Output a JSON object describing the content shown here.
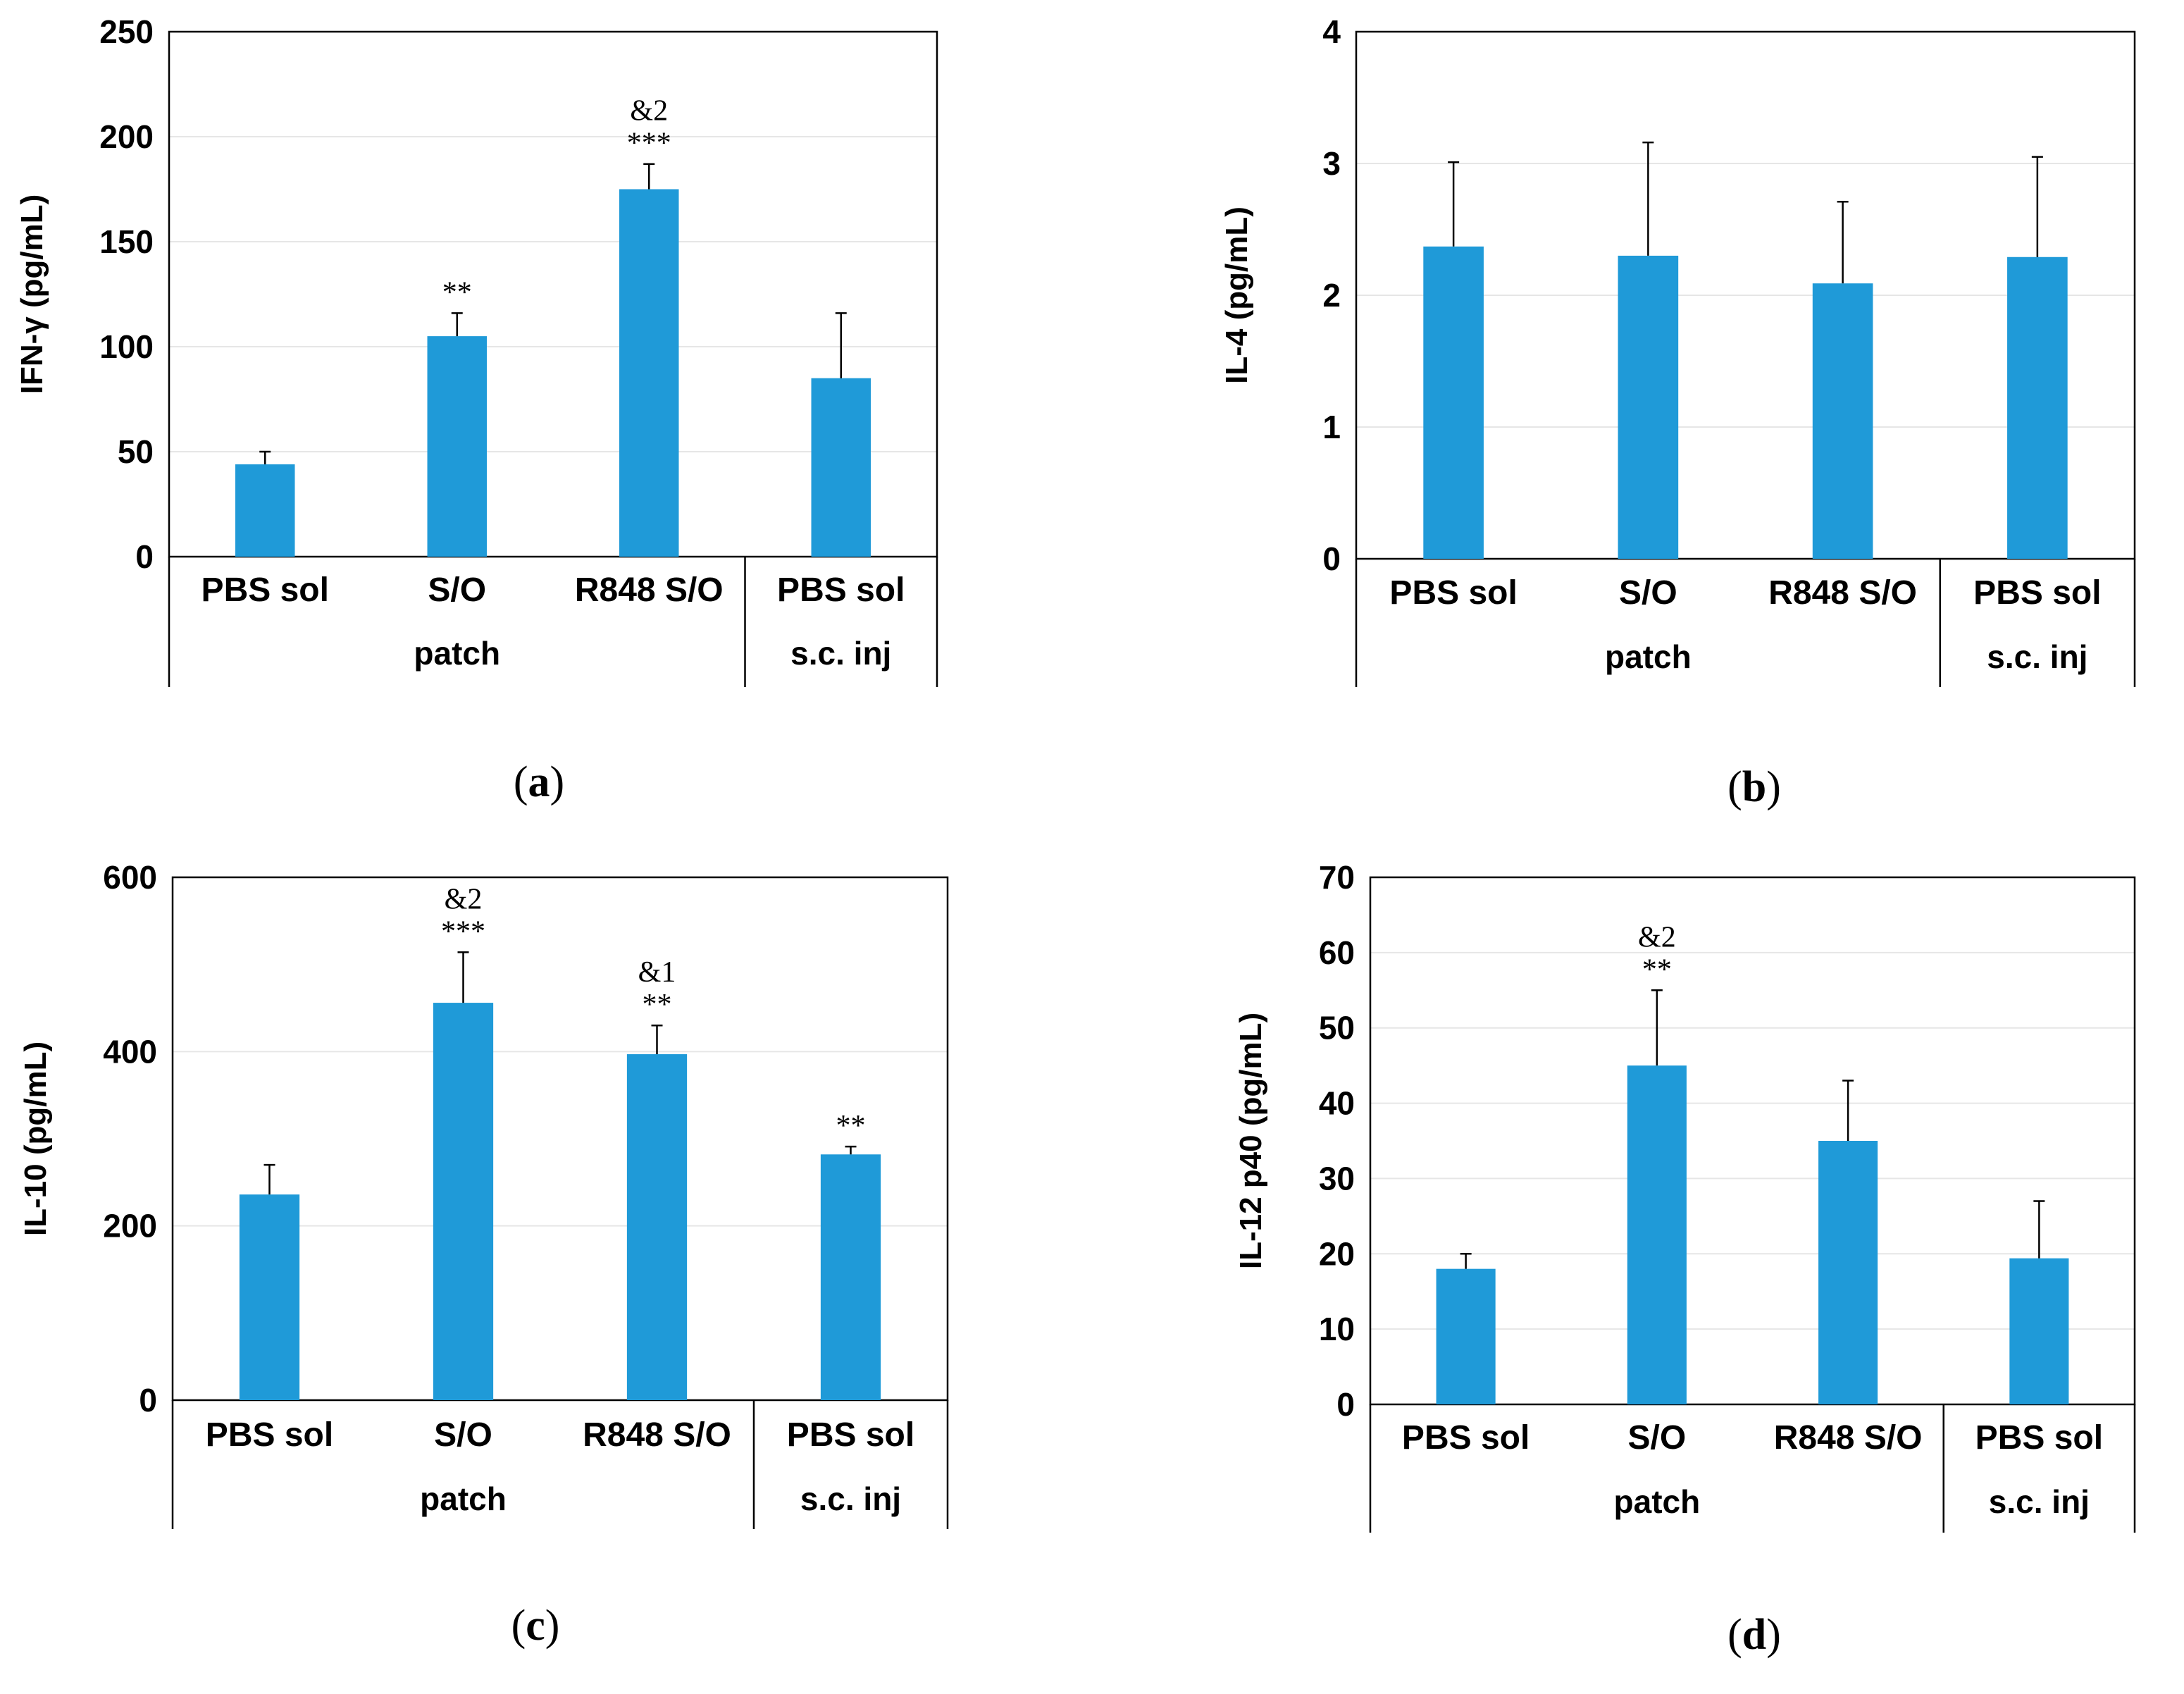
{
  "colors": {
    "bar": "#1f9ad8",
    "grid": "#e6e6e6",
    "axis": "#000000"
  },
  "chart_data": [
    {
      "id": "a",
      "type": "bar",
      "panel_label": "a",
      "ylabel": "IFN-γ (pg/mL)",
      "ylim": [
        0,
        250
      ],
      "yticks": [
        0,
        50,
        100,
        150,
        200,
        250
      ],
      "categories": [
        "PBS sol",
        "S/O",
        "R848 S/O",
        "PBS sol"
      ],
      "groups": [
        {
          "label": "patch",
          "count": 3
        },
        {
          "label": "s.c. inj",
          "count": 1
        }
      ],
      "values": [
        44,
        105,
        175,
        85
      ],
      "errors": [
        6,
        11,
        12,
        31
      ],
      "annotations": [
        [],
        [
          "**"
        ],
        [
          "&2",
          "***"
        ],
        []
      ]
    },
    {
      "id": "b",
      "type": "bar",
      "panel_label": "b",
      "ylabel": "IL-4 (pg/mL)",
      "ylim": [
        0,
        4
      ],
      "yticks": [
        0,
        1,
        2,
        3,
        4
      ],
      "categories": [
        "PBS sol",
        "S/O",
        "R848 S/O",
        "PBS sol"
      ],
      "groups": [
        {
          "label": "patch",
          "count": 3
        },
        {
          "label": "s.c. inj",
          "count": 1
        }
      ],
      "values": [
        2.37,
        2.3,
        2.09,
        2.29
      ],
      "errors": [
        0.64,
        0.86,
        0.62,
        0.76
      ],
      "annotations": [
        [],
        [],
        [],
        []
      ]
    },
    {
      "id": "c",
      "type": "bar",
      "panel_label": "c",
      "ylabel": "IL-10 (pg/mL)",
      "ylim": [
        0,
        600
      ],
      "yticks": [
        0,
        200,
        400,
        600
      ],
      "categories": [
        "PBS sol",
        "S/O",
        "R848 S/O",
        "PBS sol"
      ],
      "groups": [
        {
          "label": "patch",
          "count": 3
        },
        {
          "label": "s.c. inj",
          "count": 1
        }
      ],
      "values": [
        236,
        456,
        397,
        282
      ],
      "errors": [
        34,
        58,
        33,
        9
      ],
      "annotations": [
        [],
        [
          "&2",
          "***"
        ],
        [
          "&1",
          "**"
        ],
        [
          "**"
        ]
      ]
    },
    {
      "id": "d",
      "type": "bar",
      "panel_label": "d",
      "ylabel": "IL-12 p40 (pg/mL)",
      "ylim": [
        0,
        70
      ],
      "yticks": [
        0,
        10,
        20,
        30,
        40,
        50,
        60,
        70
      ],
      "categories": [
        "PBS sol",
        "S/O",
        "R848 S/O",
        "PBS sol"
      ],
      "groups": [
        {
          "label": "patch",
          "count": 3
        },
        {
          "label": "s.c. inj",
          "count": 1
        }
      ],
      "values": [
        18,
        45,
        35,
        19.4
      ],
      "errors": [
        2,
        10,
        8,
        7.6
      ],
      "annotations": [
        [],
        [
          "&2",
          "**"
        ],
        [],
        []
      ]
    }
  ]
}
